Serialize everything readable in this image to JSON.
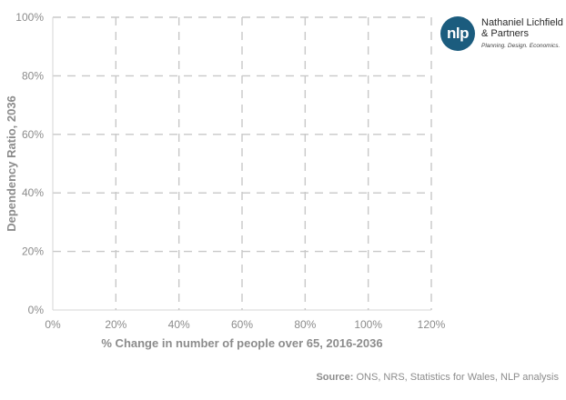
{
  "chart_data": {
    "type": "scatter",
    "title": "",
    "xlabel": "% Change in number of people over 65, 2016-2036",
    "ylabel": "Dependency Ratio, 2036",
    "xlim": [
      0,
      120
    ],
    "ylim": [
      0,
      100
    ],
    "x_ticks": [
      "0%",
      "20%",
      "40%",
      "60%",
      "80%",
      "100%",
      "120%"
    ],
    "y_ticks": [
      "0%",
      "20%",
      "40%",
      "60%",
      "80%",
      "100%"
    ],
    "x_tick_values": [
      0,
      20,
      40,
      60,
      80,
      100,
      120
    ],
    "y_tick_values": [
      0,
      20,
      40,
      60,
      80,
      100
    ],
    "grid": true,
    "series": []
  },
  "logo": {
    "initials": "nlp",
    "name": "Nathaniel Lichfield & Partners",
    "tagline": "Planning. Design. Economics."
  },
  "source": {
    "label": "Source:",
    "text": "ONS, NRS, Statistics for Wales, NLP analysis"
  },
  "colors": {
    "grid": "#c8c8c8",
    "axis_text": "#8c8c8c",
    "logo_circle": "#1b5c7e"
  }
}
